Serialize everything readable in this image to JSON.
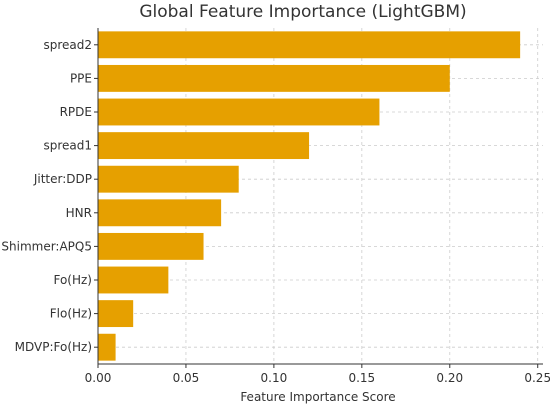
{
  "chart_data": {
    "type": "bar",
    "orientation": "horizontal",
    "title": "Global Feature Importance (LightGBM)",
    "xlabel": "Feature Importance Score",
    "ylabel": "",
    "categories": [
      "spread2",
      "PPE",
      "RPDE",
      "spread1",
      "Jitter:DDP",
      "HNR",
      "Shimmer:APQ5",
      "Fo(Hz)",
      "Flo(Hz)",
      "MDVP:Fo(Hz)"
    ],
    "values": [
      0.24,
      0.2,
      0.16,
      0.12,
      0.08,
      0.07,
      0.06,
      0.04,
      0.02,
      0.01
    ],
    "xlim": [
      0,
      0.253
    ],
    "xticks": [
      "0.00",
      "0.05",
      "0.10",
      "0.15",
      "0.20",
      "0.25"
    ],
    "xtick_values": [
      0,
      0.05,
      0.1,
      0.15,
      0.2,
      0.25
    ],
    "grid": true,
    "bar_color": "#E6A000"
  }
}
